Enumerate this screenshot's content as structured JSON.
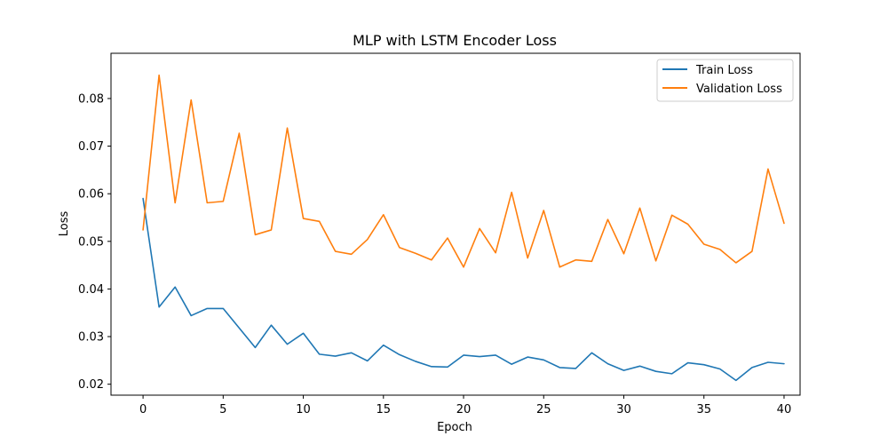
{
  "chart_data": {
    "type": "line",
    "title": "MLP with LSTM Encoder Loss",
    "xlabel": "Epoch",
    "ylabel": "Loss",
    "xlim": [
      -2,
      41
    ],
    "ylim": [
      0.0177,
      0.0895
    ],
    "xticks": [
      0,
      5,
      10,
      15,
      20,
      25,
      30,
      35,
      40
    ],
    "yticks": [
      0.02,
      0.03,
      0.04,
      0.05,
      0.06,
      0.07,
      0.08
    ],
    "legend": "top-right",
    "grid": false,
    "x": [
      0,
      1,
      2,
      3,
      4,
      5,
      6,
      7,
      8,
      9,
      10,
      11,
      12,
      13,
      14,
      15,
      16,
      17,
      18,
      19,
      20,
      21,
      22,
      23,
      24,
      25,
      26,
      27,
      28,
      29,
      30,
      31,
      32,
      33,
      34,
      35,
      36,
      37,
      38,
      39,
      40
    ],
    "series": [
      {
        "name": "Train Loss",
        "color": "#1f77b4",
        "values": [
          0.059,
          0.0362,
          0.0404,
          0.0344,
          0.0359,
          0.0359,
          0.0318,
          0.0277,
          0.0324,
          0.0284,
          0.0307,
          0.0263,
          0.0259,
          0.0266,
          0.0249,
          0.0282,
          0.0262,
          0.0248,
          0.0237,
          0.0236,
          0.0261,
          0.0258,
          0.0261,
          0.0242,
          0.0257,
          0.0251,
          0.0235,
          0.0233,
          0.0266,
          0.0243,
          0.0229,
          0.0238,
          0.0227,
          0.0222,
          0.0245,
          0.0241,
          0.0232,
          0.0208,
          0.0235,
          0.0246,
          0.0243
        ]
      },
      {
        "name": "Validation Loss",
        "color": "#ff7f0e",
        "values": [
          0.0524,
          0.0849,
          0.0581,
          0.0797,
          0.0581,
          0.0584,
          0.0727,
          0.0514,
          0.0524,
          0.0738,
          0.0548,
          0.0542,
          0.0479,
          0.0473,
          0.0504,
          0.0556,
          0.0487,
          0.0475,
          0.0461,
          0.0507,
          0.0446,
          0.0527,
          0.0476,
          0.0603,
          0.0465,
          0.0565,
          0.0446,
          0.0461,
          0.0458,
          0.0546,
          0.0474,
          0.057,
          0.0459,
          0.0555,
          0.0536,
          0.0494,
          0.0483,
          0.0455,
          0.0479,
          0.0652,
          0.0538
        ]
      }
    ]
  }
}
